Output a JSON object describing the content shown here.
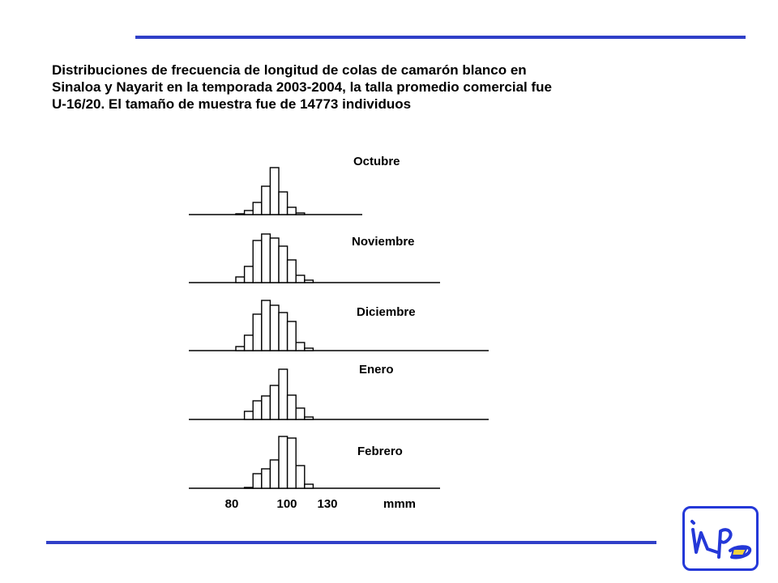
{
  "caption": {
    "line1": "Distribuciones de frecuencia de longitud de colas de camarón blanco en",
    "line2": "Sinaloa y Nayarit en la temporada 2003-2004, la talla promedio comercial fue",
    "line3": "U-16/20. El tamaño de muestra fue de 14773 individuos"
  },
  "colors": {
    "rule": "#3040c8",
    "logo": "#2438d8",
    "ink": "#000000"
  },
  "logo_icon": "inp-logo-icon",
  "chart_data": {
    "type": "bar",
    "layout": "stacked small-multiple histograms sharing one x axis",
    "bins": [
      80,
      85,
      90,
      95,
      100,
      105,
      110,
      115,
      120
    ],
    "x_tick_labels": [
      "80",
      "100",
      "130"
    ],
    "x_unit_label": "mmm",
    "grid": false,
    "series": [
      {
        "name": "Octubre",
        "values": [
          1,
          5,
          15,
          35,
          58,
          28,
          9,
          2,
          0
        ]
      },
      {
        "name": "Noviembre",
        "values": [
          7,
          20,
          52,
          60,
          55,
          45,
          28,
          9,
          3
        ]
      },
      {
        "name": "Diciembre",
        "values": [
          5,
          19,
          45,
          62,
          56,
          47,
          36,
          10,
          3
        ]
      },
      {
        "name": "Enero",
        "values": [
          0,
          10,
          23,
          29,
          42,
          62,
          30,
          14,
          3
        ]
      },
      {
        "name": "Febrero",
        "values": [
          0,
          1,
          18,
          24,
          35,
          64,
          62,
          28,
          5
        ]
      }
    ]
  }
}
